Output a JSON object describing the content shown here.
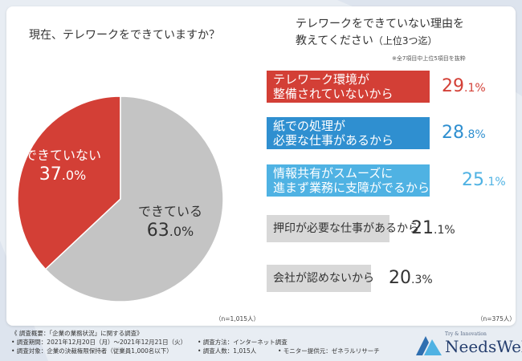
{
  "colors": {
    "red": "#d33f36",
    "grey": "#c4c4c4",
    "blue": "#2f8fd0",
    "lightblue": "#4fb2e3",
    "greybox": "#d8d8d8"
  },
  "left": {
    "title": "現在、テレワークをできていますか？",
    "n": "（n=1,015人）"
  },
  "right": {
    "title_line1": "テレワークをできていない理由を",
    "title_line2": "教えてください",
    "title_sub": "（上位3つ迄）",
    "note": "※全7項目中上位5項目を抜粋",
    "n": "（n=375人）"
  },
  "chart_data": [
    {
      "type": "pie",
      "title": "現在、テレワークをできていますか？",
      "categories": [
        "できていない",
        "できている"
      ],
      "values": [
        37.0,
        63.0
      ],
      "value_labels": [
        {
          "main": "37",
          "small": ".0%"
        },
        {
          "main": "63",
          "small": ".0%"
        }
      ],
      "unit": "%"
    },
    {
      "type": "bar",
      "title": "テレワークをできていない理由を教えてください（上位3つ迄）",
      "categories": [
        "テレワーク環境が整備されていないから",
        "紙での処理が必要な仕事があるから",
        "情報共有がスムーズに進まず業務に支障がでるから",
        "押印が必要な仕事があるから",
        "会社が認めないから"
      ],
      "category_lines": [
        [
          "テレワーク環境が",
          "整備されていないから"
        ],
        [
          "紙での処理が",
          "必要な仕事があるから"
        ],
        [
          "情報共有がスムーズに",
          "進まず業務に支障がでるから"
        ],
        [
          "押印が必要な仕事があるから"
        ],
        [
          "会社が認めないから"
        ]
      ],
      "values": [
        29.1,
        28.8,
        25.1,
        21.1,
        20.3
      ],
      "value_labels": [
        {
          "main": "29",
          "small": ".1%"
        },
        {
          "main": "28",
          "small": ".8%"
        },
        {
          "main": "25",
          "small": ".1%"
        },
        {
          "main": "21",
          "small": ".1%"
        },
        {
          "main": "20",
          "small": ".3%"
        }
      ],
      "value_colors": [
        "#d33f36",
        "#2f8fd0",
        "#4fb2e3",
        "#333333",
        "#333333"
      ],
      "box_colors": [
        "#d33f36",
        "#2f8fd0",
        "#4fb2e3",
        "#d8d8d8",
        "#d8d8d8"
      ],
      "unit": "%"
    }
  ],
  "footer": {
    "line1": "《 調査概要：「企業の業務状況」に関する調査》",
    "period": "• 調査期間：2021年12月20日（月）〜2021年12月21日（火）",
    "method": "• 調査方法：インターネット調査",
    "target": "• 調査対象：企業の決裁権限保持者（従業員1,000名以下）",
    "count": "• 調査人数：1,015人",
    "monitor": "• モニター提供元：ゼネラルリサーチ"
  },
  "logo": {
    "tagline": "Try & Innovation",
    "name": "NeedsWell"
  }
}
